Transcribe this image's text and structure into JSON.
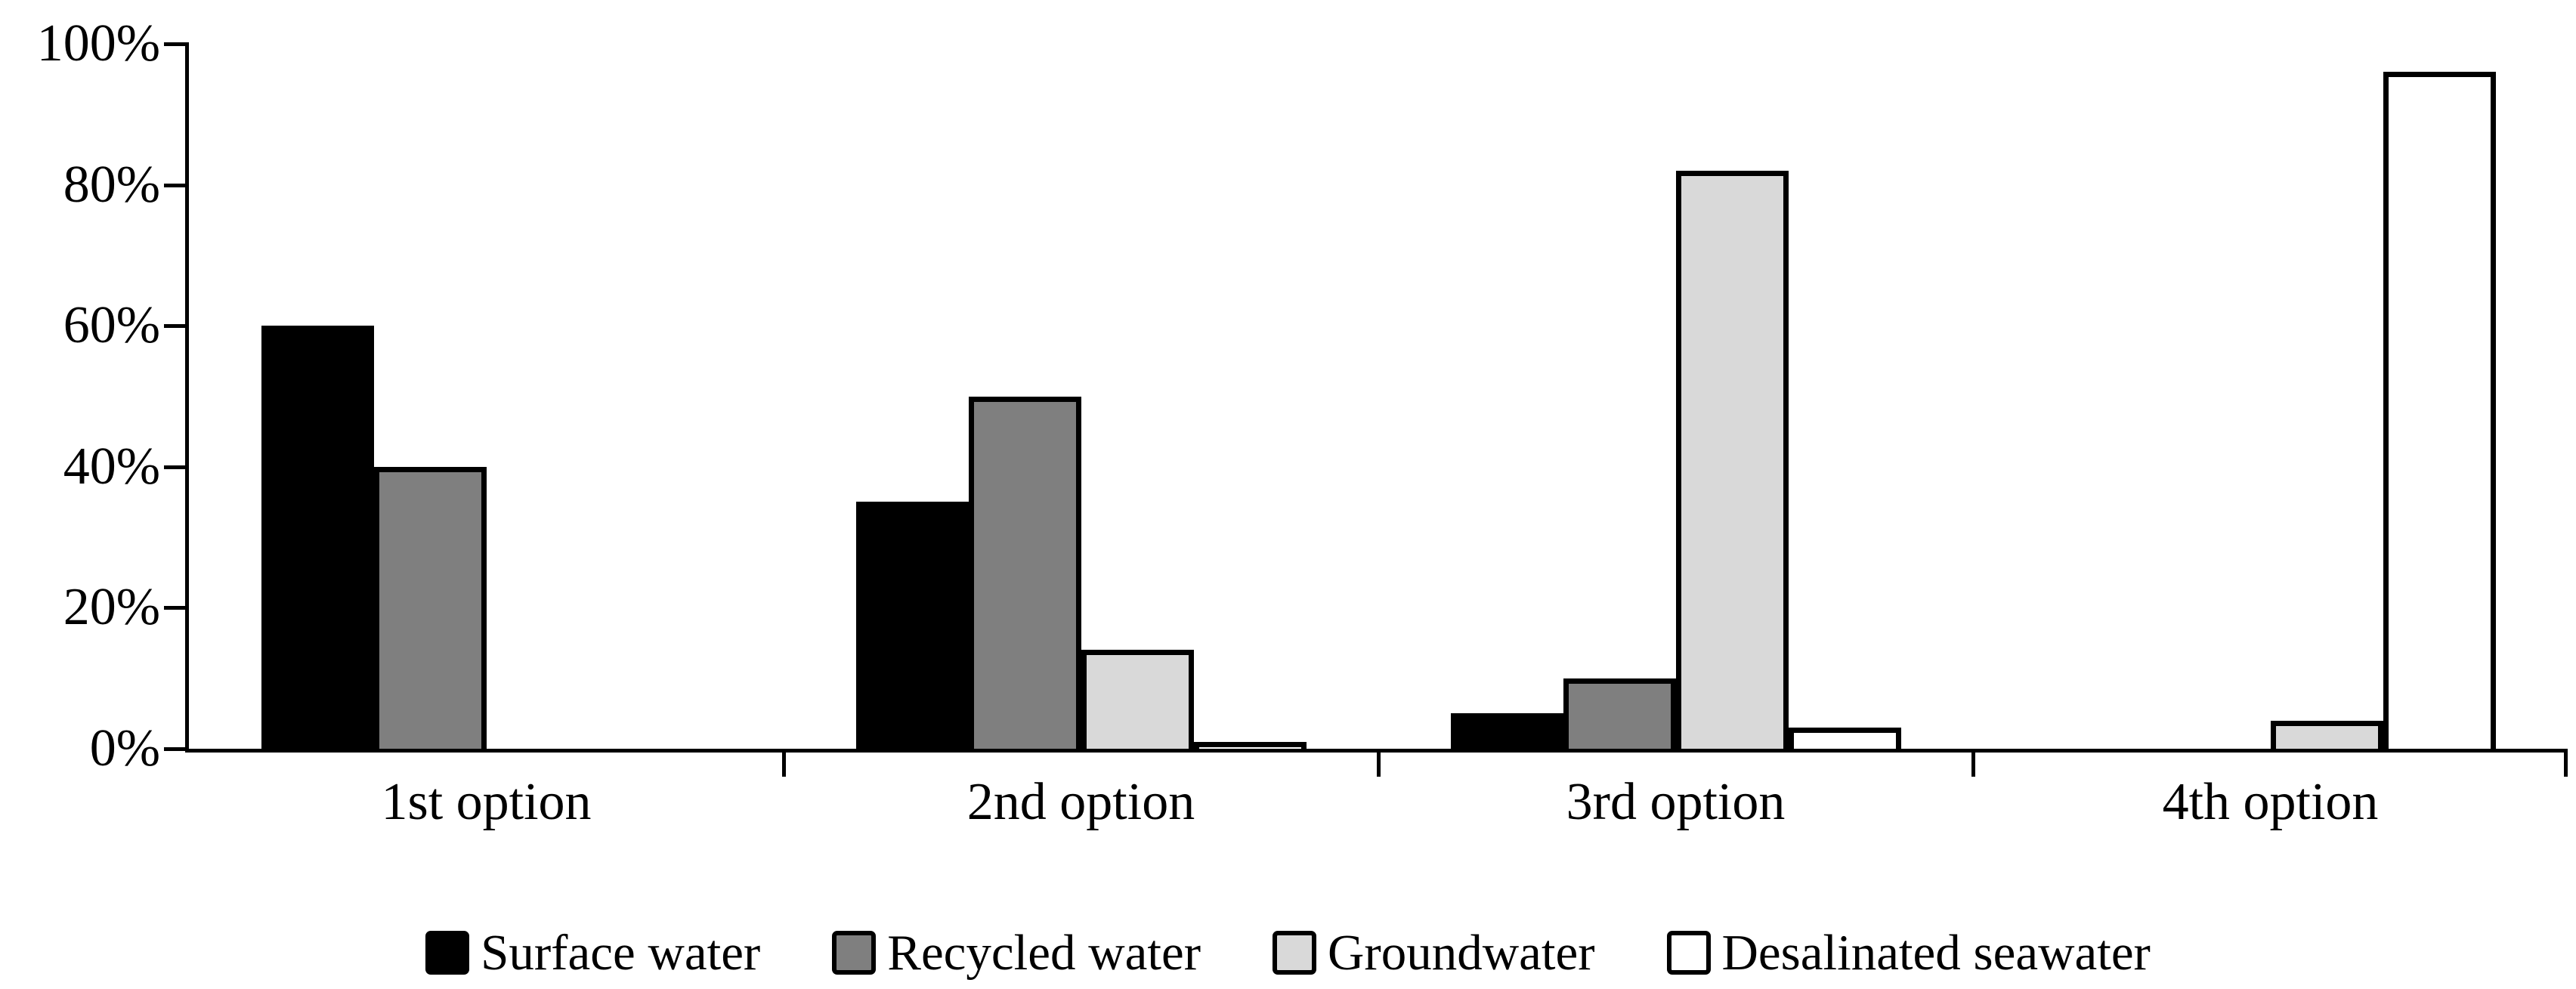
{
  "chart_data": {
    "type": "bar",
    "title": "",
    "xlabel": "",
    "ylabel": "",
    "categories": [
      "1st option",
      "2nd option",
      "3rd option",
      "4th option"
    ],
    "series": [
      {
        "name": "Surface water",
        "color": "#000000",
        "values": [
          60,
          35,
          5,
          0
        ]
      },
      {
        "name": "Recycled water",
        "color": "#7F7F7F",
        "values": [
          40,
          50,
          10,
          0
        ]
      },
      {
        "name": "Groundwater",
        "color": "#D9D9D9",
        "values": [
          0,
          14,
          82,
          4
        ]
      },
      {
        "name": "Desalinated seawater",
        "color": "#FFFFFF",
        "values": [
          0,
          1,
          3,
          96
        ]
      }
    ],
    "ylim": [
      0,
      100
    ],
    "ytick_values": [
      0,
      20,
      40,
      60,
      80,
      100
    ],
    "ytick_labels": [
      "0%",
      "20%",
      "40%",
      "60%",
      "80%",
      "100%"
    ],
    "grid": false,
    "legend_position": "bottom",
    "bar_border_color": "#000000",
    "axis_color": "#000000"
  }
}
